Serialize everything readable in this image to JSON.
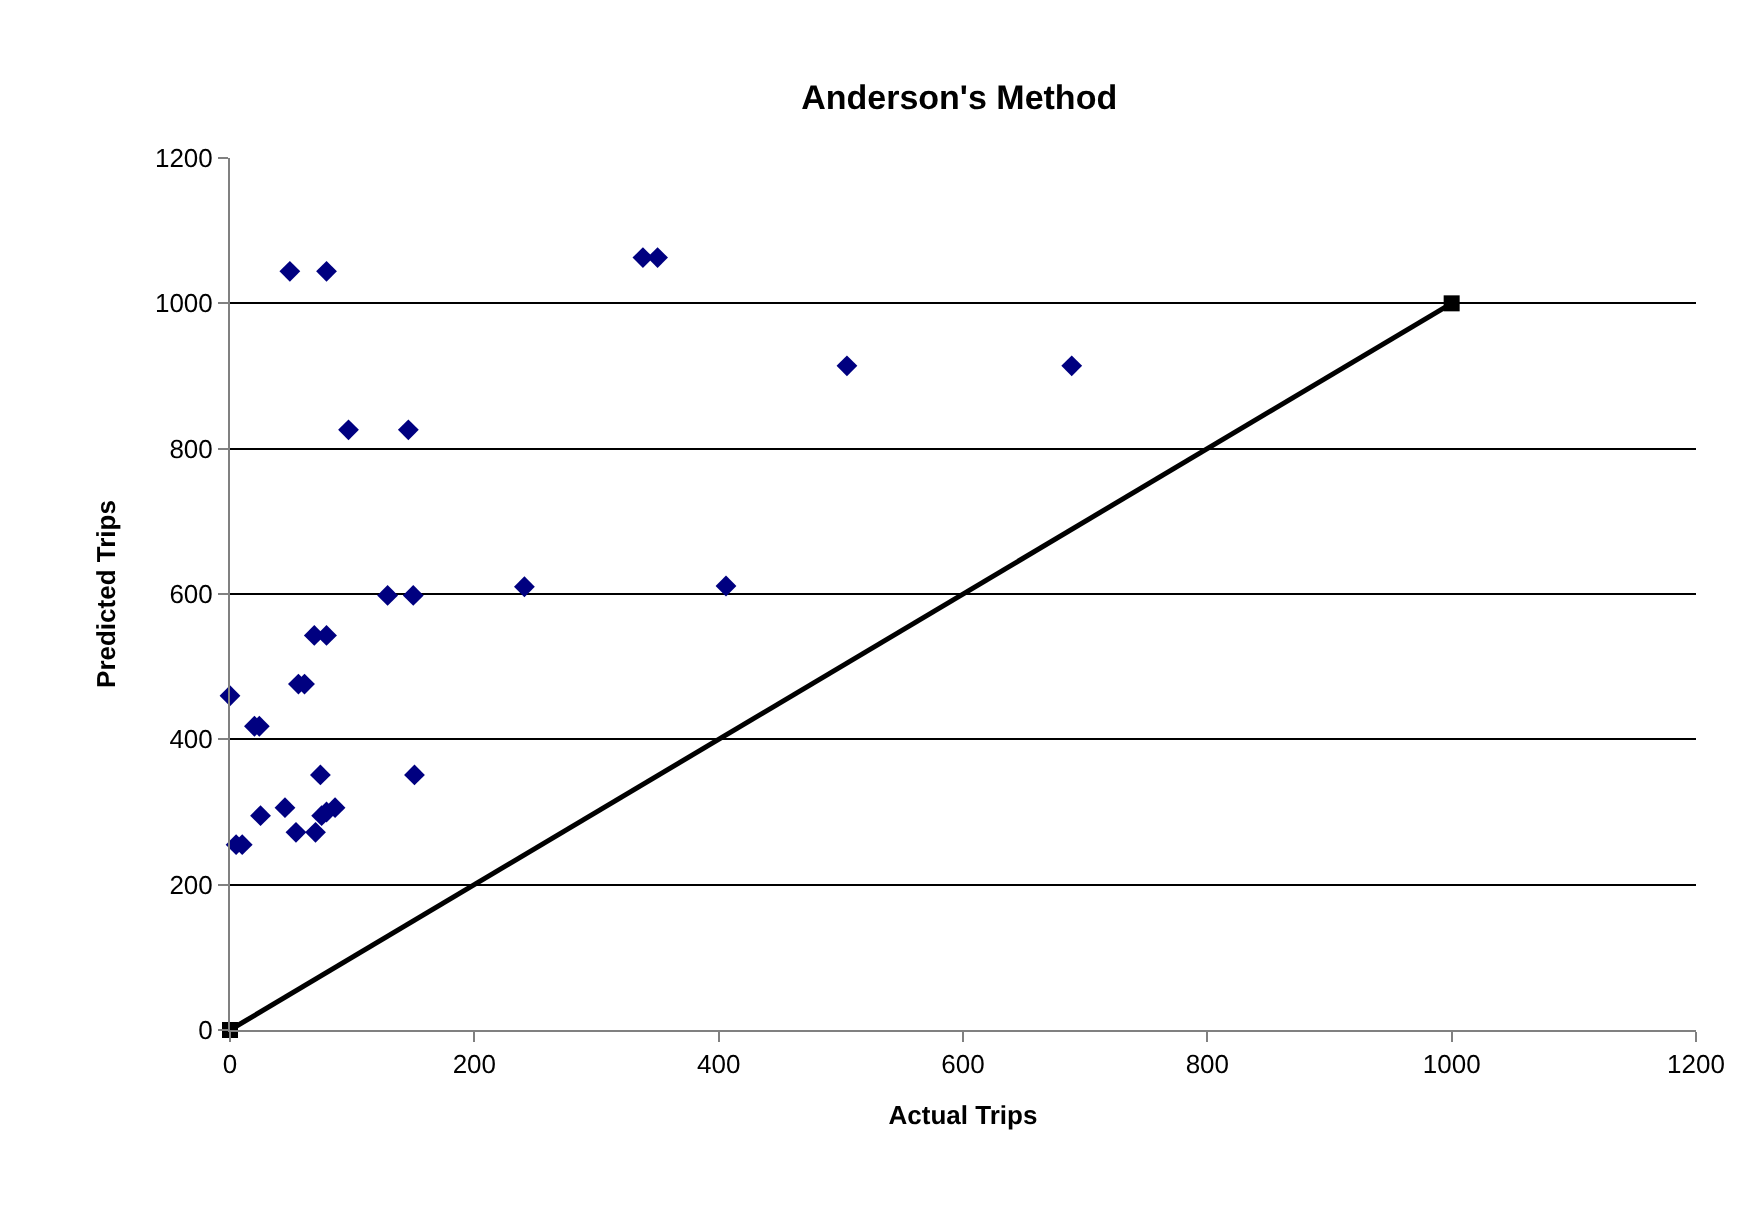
{
  "chart_data": {
    "type": "scatter",
    "title": "Anderson's Method",
    "xlabel": "Actual Trips",
    "ylabel": "Predicted Trips",
    "xlim": [
      0,
      1200
    ],
    "xticks": [
      0,
      200,
      400,
      600,
      800,
      1000,
      1200
    ],
    "ylim": [
      0,
      1200
    ],
    "yticks": [
      0,
      200,
      400,
      600,
      800,
      1000,
      1200
    ],
    "grid": "y",
    "series": [
      {
        "marker": "diamond",
        "color": "#000080",
        "x": [
          49,
          79,
          97,
          146,
          338,
          350,
          505,
          689,
          129,
          150,
          241,
          406,
          69,
          79,
          0,
          56,
          61,
          20,
          24,
          74,
          151,
          25,
          45,
          75,
          79,
          86,
          54,
          70,
          5,
          10
        ],
        "values": [
          1044,
          1044,
          826,
          826,
          1063,
          1063,
          914,
          914,
          598,
          598,
          610,
          611,
          543,
          543,
          460,
          476,
          476,
          418,
          418,
          351,
          351,
          295,
          306,
          295,
          300,
          306,
          272,
          272,
          255,
          255
        ]
      },
      {
        "type": "line",
        "marker": "square",
        "line_style": "solid",
        "color": "#000000",
        "x": [
          0,
          1000
        ],
        "values": [
          0,
          1000
        ]
      }
    ]
  }
}
